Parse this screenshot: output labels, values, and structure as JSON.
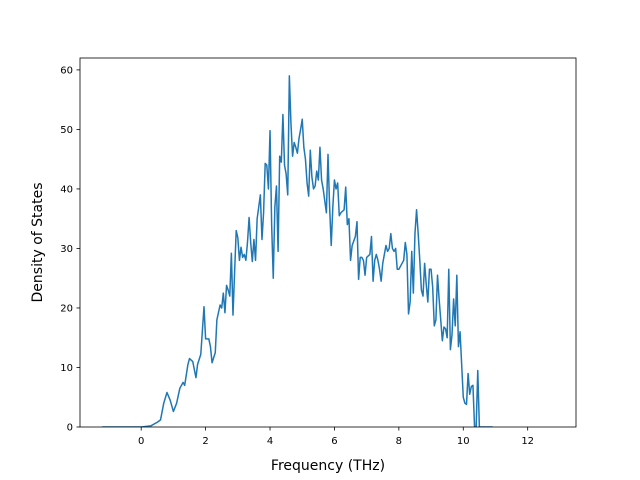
{
  "chart_data": {
    "type": "line",
    "title": "",
    "xlabel": "Frequency (THz)",
    "ylabel": "Density of States",
    "xlim": [
      -1.9,
      13.5
    ],
    "ylim": [
      0,
      62
    ],
    "xticks": [
      0,
      2,
      4,
      6,
      8,
      10,
      12
    ],
    "yticks": [
      0,
      10,
      20,
      30,
      40,
      50,
      60
    ],
    "grid": false,
    "legend": "none",
    "series": [
      {
        "color": "#1f77b4",
        "points": [
          [
            -1.2,
            0
          ],
          [
            0.0,
            0
          ],
          [
            0.3,
            0.2
          ],
          [
            0.5,
            0.8
          ],
          [
            0.6,
            1.2
          ],
          [
            0.7,
            4.0
          ],
          [
            0.8,
            5.8
          ],
          [
            0.9,
            4.5
          ],
          [
            1.0,
            2.6
          ],
          [
            1.1,
            4.0
          ],
          [
            1.2,
            6.5
          ],
          [
            1.3,
            7.5
          ],
          [
            1.35,
            7.0
          ],
          [
            1.45,
            10.5
          ],
          [
            1.5,
            11.5
          ],
          [
            1.6,
            11.0
          ],
          [
            1.7,
            8.3
          ],
          [
            1.75,
            10.5
          ],
          [
            1.85,
            12.2
          ],
          [
            1.95,
            20.2
          ],
          [
            2.0,
            14.8
          ],
          [
            2.1,
            14.8
          ],
          [
            2.15,
            13.5
          ],
          [
            2.2,
            10.8
          ],
          [
            2.3,
            12.5
          ],
          [
            2.35,
            18.0
          ],
          [
            2.45,
            20.5
          ],
          [
            2.5,
            20.0
          ],
          [
            2.55,
            22.5
          ],
          [
            2.6,
            19.2
          ],
          [
            2.65,
            23.8
          ],
          [
            2.7,
            23.0
          ],
          [
            2.75,
            22.0
          ],
          [
            2.8,
            29.2
          ],
          [
            2.85,
            18.8
          ],
          [
            2.9,
            26.0
          ],
          [
            2.95,
            33.0
          ],
          [
            3.0,
            31.8
          ],
          [
            3.05,
            28.0
          ],
          [
            3.1,
            30.2
          ],
          [
            3.15,
            28.5
          ],
          [
            3.2,
            29.0
          ],
          [
            3.25,
            28.0
          ],
          [
            3.3,
            31.0
          ],
          [
            3.35,
            35.2
          ],
          [
            3.4,
            31.0
          ],
          [
            3.45,
            27.8
          ],
          [
            3.5,
            31.5
          ],
          [
            3.55,
            28.0
          ],
          [
            3.6,
            35.0
          ],
          [
            3.65,
            37.0
          ],
          [
            3.7,
            39.0
          ],
          [
            3.75,
            31.5
          ],
          [
            3.8,
            36.0
          ],
          [
            3.85,
            44.3
          ],
          [
            3.9,
            44.0
          ],
          [
            3.95,
            40.0
          ],
          [
            4.0,
            49.8
          ],
          [
            4.05,
            34.0
          ],
          [
            4.1,
            25.0
          ],
          [
            4.15,
            37.0
          ],
          [
            4.2,
            40.5
          ],
          [
            4.25,
            29.5
          ],
          [
            4.3,
            45.5
          ],
          [
            4.35,
            44.5
          ],
          [
            4.4,
            52.5
          ],
          [
            4.45,
            44.0
          ],
          [
            4.5,
            42.5
          ],
          [
            4.55,
            39.0
          ],
          [
            4.6,
            59.0
          ],
          [
            4.65,
            51.0
          ],
          [
            4.7,
            45.5
          ],
          [
            4.75,
            47.8
          ],
          [
            4.8,
            47.0
          ],
          [
            4.85,
            46.0
          ],
          [
            4.9,
            48.5
          ],
          [
            4.95,
            50.0
          ],
          [
            5.0,
            51.7
          ],
          [
            5.05,
            47.0
          ],
          [
            5.1,
            45.0
          ],
          [
            5.15,
            41.0
          ],
          [
            5.2,
            38.8
          ],
          [
            5.25,
            46.5
          ],
          [
            5.3,
            42.0
          ],
          [
            5.35,
            40.0
          ],
          [
            5.4,
            40.5
          ],
          [
            5.45,
            43.0
          ],
          [
            5.5,
            41.5
          ],
          [
            5.55,
            47.0
          ],
          [
            5.6,
            41.5
          ],
          [
            5.65,
            40.0
          ],
          [
            5.7,
            38.0
          ],
          [
            5.75,
            36.0
          ],
          [
            5.8,
            45.8
          ],
          [
            5.85,
            37.0
          ],
          [
            5.9,
            30.5
          ],
          [
            5.95,
            37.0
          ],
          [
            6.0,
            41.5
          ],
          [
            6.05,
            40.0
          ],
          [
            6.1,
            41.0
          ],
          [
            6.15,
            35.5
          ],
          [
            6.2,
            36.0
          ],
          [
            6.3,
            36.5
          ],
          [
            6.35,
            40.3
          ],
          [
            6.4,
            34.0
          ],
          [
            6.45,
            35.0
          ],
          [
            6.5,
            28.0
          ],
          [
            6.55,
            30.5
          ],
          [
            6.65,
            32.0
          ],
          [
            6.7,
            34.5
          ],
          [
            6.75,
            24.8
          ],
          [
            6.8,
            28.5
          ],
          [
            6.85,
            28.5
          ],
          [
            6.9,
            28.0
          ],
          [
            6.95,
            25.5
          ],
          [
            7.0,
            28.5
          ],
          [
            7.1,
            29.0
          ],
          [
            7.15,
            32.0
          ],
          [
            7.2,
            24.5
          ],
          [
            7.25,
            28.0
          ],
          [
            7.3,
            29.0
          ],
          [
            7.35,
            28.0
          ],
          [
            7.4,
            26.5
          ],
          [
            7.45,
            24.5
          ],
          [
            7.5,
            27.5
          ],
          [
            7.6,
            30.5
          ],
          [
            7.65,
            29.5
          ],
          [
            7.7,
            30.0
          ],
          [
            7.75,
            32.5
          ],
          [
            7.8,
            30.0
          ],
          [
            7.85,
            29.5
          ],
          [
            7.9,
            30.0
          ],
          [
            7.95,
            26.5
          ],
          [
            8.0,
            26.5
          ],
          [
            8.1,
            27.5
          ],
          [
            8.15,
            28.0
          ],
          [
            8.2,
            31.0
          ],
          [
            8.25,
            29.0
          ],
          [
            8.3,
            19.0
          ],
          [
            8.35,
            21.0
          ],
          [
            8.4,
            29.5
          ],
          [
            8.45,
            22.5
          ],
          [
            8.5,
            32.5
          ],
          [
            8.55,
            36.5
          ],
          [
            8.6,
            32.5
          ],
          [
            8.65,
            28.0
          ],
          [
            8.7,
            23.0
          ],
          [
            8.75,
            22.0
          ],
          [
            8.8,
            27.5
          ],
          [
            8.85,
            24.0
          ],
          [
            8.9,
            21.0
          ],
          [
            8.95,
            26.5
          ],
          [
            9.0,
            26.5
          ],
          [
            9.05,
            23.5
          ],
          [
            9.1,
            17.0
          ],
          [
            9.15,
            18.0
          ],
          [
            9.2,
            25.5
          ],
          [
            9.25,
            21.5
          ],
          [
            9.3,
            18.0
          ],
          [
            9.35,
            14.5
          ],
          [
            9.4,
            16.8
          ],
          [
            9.45,
            16.5
          ],
          [
            9.5,
            15.0
          ],
          [
            9.55,
            26.5
          ],
          [
            9.6,
            13.0
          ],
          [
            9.65,
            15.5
          ],
          [
            9.7,
            21.5
          ],
          [
            9.75,
            17.0
          ],
          [
            9.8,
            25.5
          ],
          [
            9.85,
            13.5
          ],
          [
            9.9,
            16.0
          ],
          [
            9.95,
            10.5
          ],
          [
            10.0,
            5.0
          ],
          [
            10.05,
            4.0
          ],
          [
            10.1,
            3.8
          ],
          [
            10.15,
            9.0
          ],
          [
            10.2,
            5.5
          ],
          [
            10.25,
            6.8
          ],
          [
            10.3,
            7.0
          ],
          [
            10.35,
            0
          ],
          [
            10.4,
            0
          ],
          [
            10.45,
            9.5
          ],
          [
            10.5,
            0
          ],
          [
            10.55,
            0
          ],
          [
            10.9,
            0
          ]
        ]
      }
    ]
  }
}
